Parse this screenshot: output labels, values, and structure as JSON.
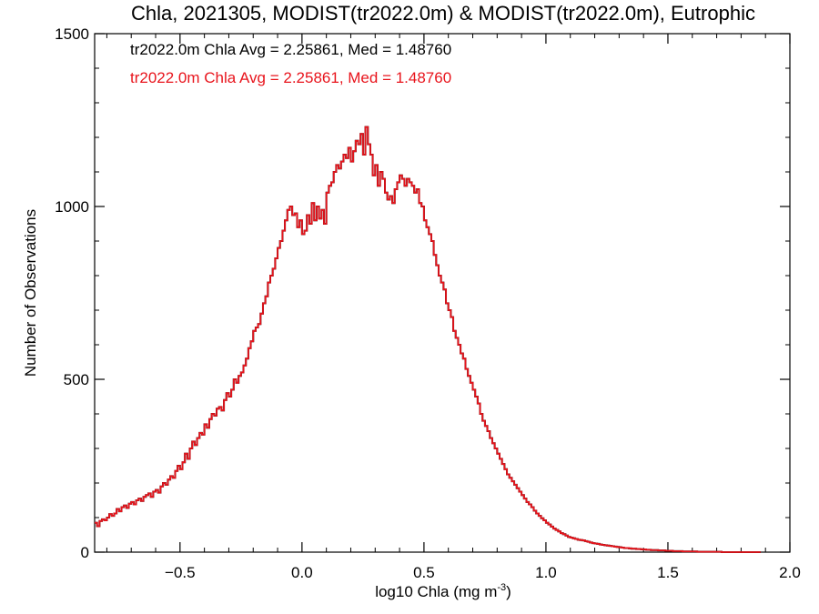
{
  "chart_data": {
    "type": "histogram",
    "title": "Chla, 2021305, MODIST(tr2022.0m) & MODIST(tr2022.0m), Eutrophic",
    "xlabel_main": "log10 Chla (mg m",
    "xlabel_sup": "-3",
    "xlabel_tail": ")",
    "ylabel": "Number of Observations",
    "xlim": [
      -0.85,
      2.0
    ],
    "ylim": [
      0,
      1500
    ],
    "xticks": [
      -0.5,
      0.0,
      0.5,
      1.0,
      1.5,
      2.0
    ],
    "xtick_labels": [
      "−0.5",
      "0.0",
      "0.5",
      "1.0",
      "1.5",
      "2.0"
    ],
    "yticks": [
      0,
      500,
      1000,
      1500
    ],
    "ytick_labels": [
      "0",
      "500",
      "1000",
      "1500"
    ],
    "annotations": [
      {
        "text": "tr2022.0m Chla Avg = 2.25861, Med = 1.48760",
        "color": "#000000"
      },
      {
        "text": "tr2022.0m Chla Avg = 2.25861, Med = 1.48760",
        "color": "#e8141c"
      }
    ],
    "series": [
      {
        "name": "tr2022.0m",
        "color": "#000000"
      },
      {
        "name": "tr2022.0m",
        "color": "#e8141c"
      }
    ],
    "bin_width": 0.01,
    "x_start": -0.85,
    "values": [
      85,
      75,
      90,
      95,
      92,
      100,
      110,
      105,
      112,
      125,
      118,
      130,
      135,
      128,
      140,
      145,
      138,
      150,
      155,
      148,
      160,
      165,
      170,
      160,
      175,
      180,
      172,
      190,
      200,
      195,
      210,
      220,
      215,
      235,
      250,
      240,
      260,
      285,
      270,
      300,
      320,
      310,
      330,
      345,
      340,
      370,
      360,
      385,
      400,
      395,
      415,
      420,
      410,
      440,
      460,
      450,
      470,
      500,
      490,
      510,
      520,
      540,
      560,
      590,
      610,
      640,
      650,
      660,
      690,
      720,
      740,
      780,
      800,
      820,
      850,
      880,
      900,
      930,
      960,
      990,
      1000,
      975,
      980,
      940,
      960,
      920,
      930,
      975,
      950,
      1010,
      960,
      1000,
      965,
      990,
      950,
      1040,
      1060,
      1070,
      1100,
      1120,
      1110,
      1130,
      1150,
      1140,
      1170,
      1130,
      1160,
      1190,
      1180,
      1210,
      1150,
      1230,
      1180,
      1150,
      1090,
      1120,
      1060,
      1100,
      1080,
      1040,
      1020,
      1030,
      1010,
      1050,
      1070,
      1090,
      1080,
      1060,
      1080,
      1070,
      1060,
      1040,
      1050,
      1010,
      1000,
      960,
      940,
      920,
      900,
      860,
      830,
      800,
      780,
      760,
      720,
      700,
      680,
      640,
      620,
      600,
      575,
      560,
      530,
      510,
      490,
      470,
      450,
      430,
      400,
      380,
      365,
      350,
      330,
      315,
      300,
      285,
      270,
      255,
      240,
      225,
      215,
      205,
      195,
      185,
      175,
      165,
      155,
      145,
      138,
      130,
      120,
      112,
      105,
      98,
      92,
      85,
      80,
      74,
      68,
      64,
      60,
      55,
      52,
      48,
      44,
      42,
      40,
      38,
      36,
      35,
      34,
      32,
      30,
      28,
      26,
      25,
      24,
      22,
      21,
      20,
      19,
      18,
      17,
      16,
      15,
      14,
      13,
      12,
      12,
      11,
      10,
      10,
      9,
      9,
      8,
      8,
      7,
      7,
      6,
      6,
      6,
      5,
      5,
      5,
      4,
      4,
      4,
      3,
      3,
      3,
      3,
      2,
      2,
      2,
      2,
      2,
      2,
      1,
      1,
      1,
      1,
      1,
      1,
      1,
      1,
      1,
      1,
      0,
      0,
      0,
      0,
      0,
      0,
      0,
      0,
      0,
      0,
      0,
      0,
      0,
      0,
      0,
      0
    ]
  }
}
